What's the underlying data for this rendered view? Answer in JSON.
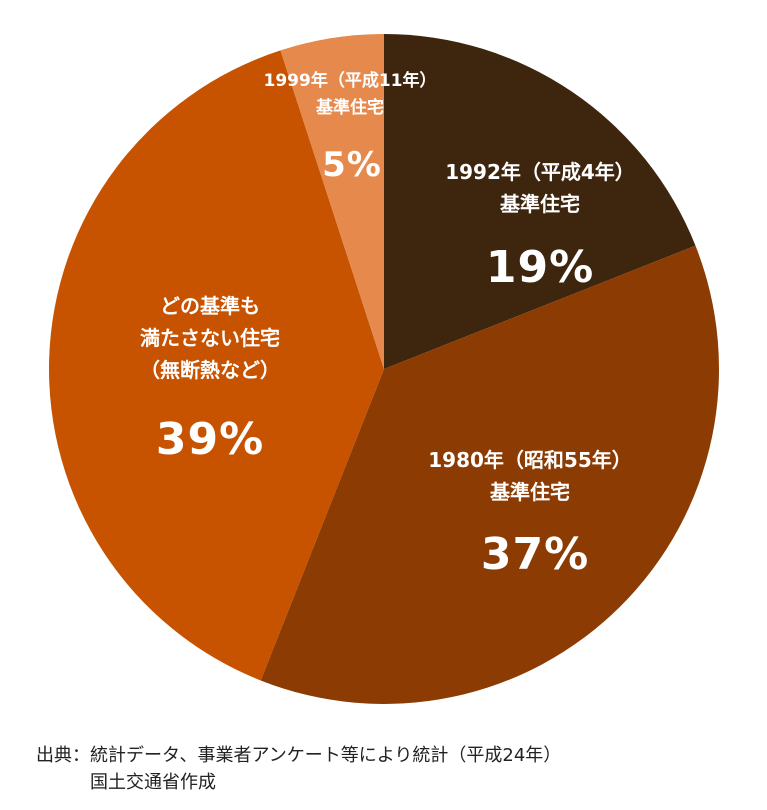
{
  "chart_data": {
    "type": "pie",
    "categories": [
      "1992年（平成4年）\n基準住宅",
      "1980年（昭和55年）\n基準住宅",
      "どの基準も\n満たさない住宅\n（無断熱など）",
      "1999年（平成11年）\n基準住宅"
    ],
    "values": [
      19,
      37,
      39,
      5
    ],
    "value_labels": [
      "19%",
      "37%",
      "39%",
      "5%"
    ],
    "colors": [
      "#3d250e",
      "#8c3b03",
      "#c75200",
      "#e5894c"
    ]
  },
  "source_label": "出典：",
  "source": "統計データ、事業者アンケート等により統計（平成24年）\n国土交通省作成"
}
